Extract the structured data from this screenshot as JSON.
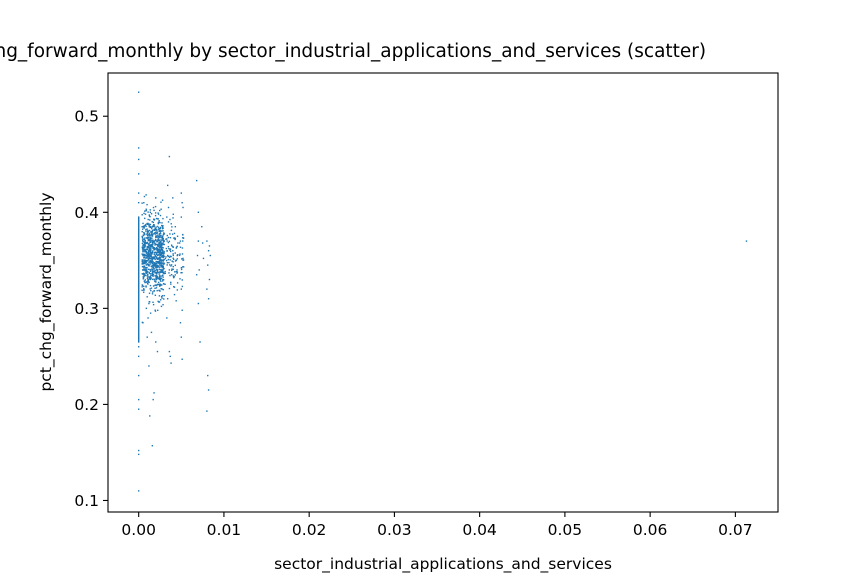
{
  "chart_data": {
    "type": "scatter",
    "title": "pct_chg_forward_monthly by sector_industrial_applications_and_services (scatter)",
    "xlabel": "sector_industrial_applications_and_services",
    "ylabel": "pct_chg_forward_monthly",
    "xlim": [
      -0.0036,
      0.075
    ],
    "ylim": [
      0.088,
      0.545
    ],
    "xticks": [
      0.0,
      0.01,
      0.02,
      0.03,
      0.04,
      0.05,
      0.06,
      0.07
    ],
    "xtick_labels": [
      "0.00",
      "0.01",
      "0.02",
      "0.03",
      "0.04",
      "0.05",
      "0.06",
      "0.07"
    ],
    "yticks": [
      0.1,
      0.2,
      0.3,
      0.4,
      0.5
    ],
    "ytick_labels": [
      "0.1",
      "0.2",
      "0.3",
      "0.4",
      "0.5"
    ],
    "grid": false,
    "marker_color": "#1f77b4",
    "points": [
      [
        0.0,
        0.525
      ],
      [
        0.0,
        0.11
      ],
      [
        0.0,
        0.152
      ],
      [
        0.0,
        0.148
      ],
      [
        0.0,
        0.467
      ],
      [
        0.0,
        0.455
      ],
      [
        0.0,
        0.44
      ],
      [
        0.0,
        0.42
      ],
      [
        0.0,
        0.41
      ],
      [
        0.0,
        0.195
      ],
      [
        0.0,
        0.205
      ],
      [
        0.0,
        0.23
      ],
      [
        0.0,
        0.25
      ],
      [
        0.0,
        0.26
      ],
      [
        0.0004,
        0.385
      ],
      [
        0.0006,
        0.372
      ],
      [
        0.0008,
        0.36
      ],
      [
        0.0005,
        0.34
      ],
      [
        0.0009,
        0.355
      ],
      [
        0.0012,
        0.348
      ],
      [
        0.001,
        0.378
      ],
      [
        0.0014,
        0.366
      ],
      [
        0.0016,
        0.352
      ],
      [
        0.0011,
        0.33
      ],
      [
        0.0018,
        0.361
      ],
      [
        0.0013,
        0.392
      ],
      [
        0.002,
        0.374
      ],
      [
        0.0017,
        0.343
      ],
      [
        0.0022,
        0.358
      ],
      [
        0.0015,
        0.321
      ],
      [
        0.0024,
        0.349
      ],
      [
        0.0019,
        0.382
      ],
      [
        0.0026,
        0.365
      ],
      [
        0.0008,
        0.398
      ],
      [
        0.001,
        0.312
      ],
      [
        0.0021,
        0.336
      ],
      [
        0.0023,
        0.389
      ],
      [
        0.0007,
        0.35
      ],
      [
        0.0028,
        0.357
      ],
      [
        0.0012,
        0.305
      ],
      [
        0.003,
        0.37
      ],
      [
        0.0009,
        0.3
      ],
      [
        0.0018,
        0.402
      ],
      [
        0.0025,
        0.318
      ],
      [
        0.0006,
        0.41
      ],
      [
        0.0014,
        0.295
      ],
      [
        0.002,
        0.415
      ],
      [
        0.0011,
        0.29
      ],
      [
        0.0016,
        0.38
      ],
      [
        0.0027,
        0.345
      ],
      [
        0.001,
        0.27
      ],
      [
        0.0015,
        0.275
      ],
      [
        0.0005,
        0.285
      ],
      [
        0.002,
        0.265
      ],
      [
        0.0013,
        0.188
      ],
      [
        0.0017,
        0.205
      ],
      [
        0.0018,
        0.212
      ],
      [
        0.0016,
        0.157
      ],
      [
        0.0012,
        0.24
      ],
      [
        0.0022,
        0.255
      ],
      [
        0.0032,
        0.372
      ],
      [
        0.0034,
        0.355
      ],
      [
        0.0036,
        0.34
      ],
      [
        0.0033,
        0.395
      ],
      [
        0.0035,
        0.405
      ],
      [
        0.0031,
        0.325
      ],
      [
        0.0034,
        0.31
      ],
      [
        0.0036,
        0.458
      ],
      [
        0.0034,
        0.428
      ],
      [
        0.0035,
        0.39
      ],
      [
        0.0037,
        0.25
      ],
      [
        0.0038,
        0.243
      ],
      [
        0.0036,
        0.255
      ],
      [
        0.0033,
        0.29
      ],
      [
        0.004,
        0.36
      ],
      [
        0.0042,
        0.378
      ],
      [
        0.0044,
        0.35
      ],
      [
        0.0046,
        0.368
      ],
      [
        0.0041,
        0.332
      ],
      [
        0.0043,
        0.385
      ],
      [
        0.0045,
        0.34
      ],
      [
        0.004,
        0.415
      ],
      [
        0.0042,
        0.322
      ],
      [
        0.005,
        0.42
      ],
      [
        0.0051,
        0.41
      ],
      [
        0.0049,
        0.37
      ],
      [
        0.0052,
        0.352
      ],
      [
        0.005,
        0.395
      ],
      [
        0.0051,
        0.298
      ],
      [
        0.0049,
        0.285
      ],
      [
        0.005,
        0.27
      ],
      [
        0.0051,
        0.247
      ],
      [
        0.005,
        0.32
      ],
      [
        0.0052,
        0.405
      ],
      [
        0.0068,
        0.433
      ],
      [
        0.007,
        0.37
      ],
      [
        0.0069,
        0.355
      ],
      [
        0.0071,
        0.34
      ],
      [
        0.0068,
        0.335
      ],
      [
        0.007,
        0.305
      ],
      [
        0.0072,
        0.265
      ],
      [
        0.007,
        0.4
      ],
      [
        0.0075,
        0.368
      ],
      [
        0.0076,
        0.352
      ],
      [
        0.0074,
        0.385
      ],
      [
        0.008,
        0.37
      ],
      [
        0.0082,
        0.36
      ],
      [
        0.0081,
        0.345
      ],
      [
        0.0083,
        0.33
      ],
      [
        0.008,
        0.32
      ],
      [
        0.0082,
        0.31
      ],
      [
        0.0084,
        0.355
      ],
      [
        0.0081,
        0.23
      ],
      [
        0.008,
        0.193
      ],
      [
        0.0082,
        0.215
      ],
      [
        0.0083,
        0.365
      ],
      [
        0.0713,
        0.37
      ]
    ],
    "clusters": [
      {
        "x_range": [
          0.0004,
          0.003
        ],
        "y_mean": 0.355,
        "y_sd": 0.02,
        "count": 900
      },
      {
        "x_range": [
          0.0031,
          0.0046
        ],
        "y_mean": 0.355,
        "y_sd": 0.018,
        "count": 90
      },
      {
        "x_range": [
          0.0048,
          0.0053
        ],
        "y_mean": 0.35,
        "y_sd": 0.02,
        "count": 25
      }
    ],
    "dense_line": {
      "x": 0.0,
      "y_range": [
        0.265,
        0.395
      ],
      "count": 140
    }
  }
}
